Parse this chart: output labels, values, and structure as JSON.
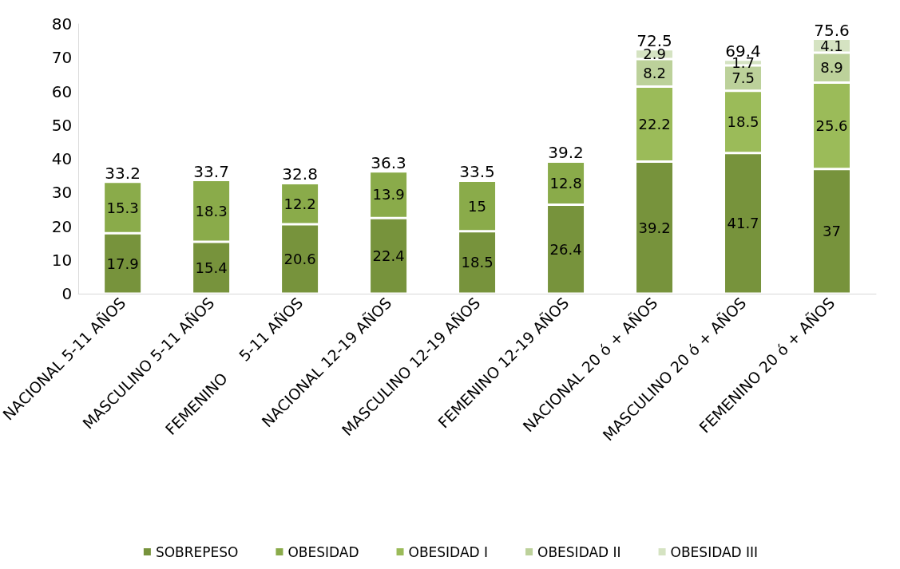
{
  "chart_data": {
    "type": "bar",
    "stacked": true,
    "categories": [
      "NACIONAL 5-11 AÑOS",
      "MASCULINO 5-11 AÑOS",
      "FEMENINO     5-11 AÑOS",
      "NACIONAL 12-19 AÑOS",
      "MASCULINO 12-19 AÑOS",
      "FEMENINO 12-19 AÑOS",
      "NACIONAL 20 ó + AÑOS",
      "MASCULINO 20 ó + AÑOS",
      "FEMENINO 20 ó + AÑOS"
    ],
    "series": [
      {
        "name": "SOBREPESO",
        "color": "#77933c",
        "values": [
          17.9,
          15.4,
          20.6,
          22.4,
          18.5,
          26.4,
          39.2,
          41.7,
          37
        ]
      },
      {
        "name": "OBESIDAD",
        "color": "#8aab4a",
        "values": [
          15.3,
          18.3,
          12.2,
          13.9,
          15,
          12.8,
          null,
          null,
          null
        ]
      },
      {
        "name": "OBESIDAD I",
        "color": "#9bbb59",
        "values": [
          null,
          null,
          null,
          null,
          null,
          null,
          22.2,
          18.5,
          25.6
        ]
      },
      {
        "name": "OBESIDAD II",
        "color": "#bcd19a",
        "values": [
          null,
          null,
          null,
          null,
          null,
          null,
          8.2,
          7.5,
          8.9
        ]
      },
      {
        "name": "OBESIDAD III",
        "color": "#d5e3c2",
        "values": [
          null,
          null,
          null,
          null,
          null,
          null,
          2.9,
          1.7,
          4.1
        ]
      }
    ],
    "totals": [
      "33.2",
      "33.7",
      "32.8",
      "36.3",
      "33.5",
      "39.2",
      "72.5",
      "69.4",
      "75.6"
    ],
    "ylim": [
      0,
      80
    ],
    "yticks": [
      0,
      10,
      20,
      30,
      40,
      50,
      60,
      70,
      80
    ],
    "grid": false,
    "legend": "bottom",
    "data_labels": true
  }
}
